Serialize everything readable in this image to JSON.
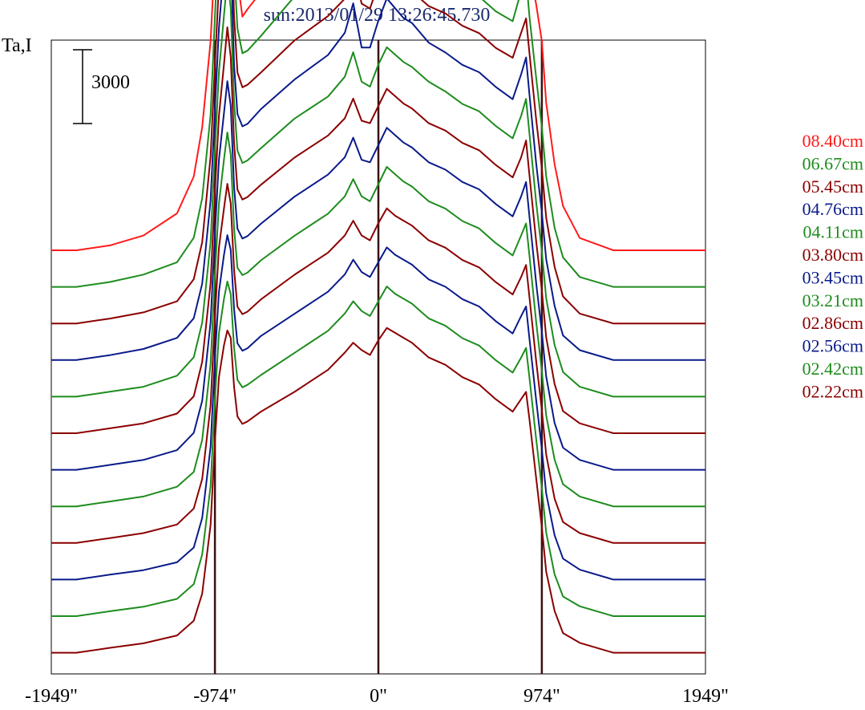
{
  "chart_data": {
    "type": "line",
    "title": "sun:2013/01/29 13:26:45.730",
    "ylabel": "Ta,I",
    "scale_bar_label": "3000",
    "scale_bar_value": 3000,
    "xlim": [
      -1949,
      1949
    ],
    "x_ticks": [
      {
        "value": -1949,
        "label": "-1949\""
      },
      {
        "value": -974,
        "label": "-974\""
      },
      {
        "value": 0,
        "label": "0\""
      },
      {
        "value": 974,
        "label": "974\""
      },
      {
        "value": 1949,
        "label": "1949\""
      }
    ],
    "vertical_markers": [
      -974,
      0,
      974
    ],
    "legend_position": "right",
    "offset_step": 3000,
    "x": [
      -1949,
      -1800,
      -1600,
      -1400,
      -1200,
      -1100,
      -1050,
      -1000,
      -974,
      -950,
      -920,
      -900,
      -880,
      -860,
      -840,
      -810,
      -780,
      -700,
      -500,
      -300,
      -200,
      -150,
      -100,
      -50,
      0,
      50,
      100,
      150,
      200,
      250,
      300,
      400,
      500,
      600,
      700,
      800,
      850,
      880,
      900,
      940,
      974,
      1000,
      1050,
      1100,
      1200,
      1400,
      1600,
      1800,
      1949
    ],
    "series": [
      {
        "name": "08.40cm",
        "color": "#ff1a1a",
        "values": [
          0,
          0,
          200,
          600,
          1500,
          3000,
          5000,
          8500,
          12000,
          15500,
          18500,
          20500,
          19000,
          15000,
          11000,
          9500,
          9800,
          10500,
          12000,
          13500,
          15000,
          16500,
          15000,
          14000,
          15500,
          16500,
          15500,
          15000,
          15000,
          14200,
          13500,
          13000,
          12500,
          12200,
          11500,
          11000,
          12500,
          13000,
          11500,
          10000,
          8500,
          6000,
          3500,
          1800,
          500,
          0,
          0,
          0,
          0
        ]
      },
      {
        "name": "06.67cm",
        "color": "#1e8c1e",
        "values": [
          0,
          0,
          200,
          500,
          1000,
          2000,
          3600,
          7000,
          11000,
          14500,
          17500,
          19500,
          18000,
          13000,
          10500,
          9500,
          9600,
          10200,
          11800,
          12800,
          13800,
          15500,
          13500,
          12800,
          14000,
          15000,
          14600,
          14200,
          14000,
          13500,
          13000,
          12700,
          12200,
          11800,
          11200,
          10800,
          12000,
          12600,
          11000,
          8500,
          6500,
          4500,
          2400,
          1200,
          400,
          0,
          0,
          0,
          0
        ]
      },
      {
        "name": "05.45cm",
        "color": "#8b0000",
        "values": [
          0,
          0,
          200,
          450,
          900,
          1800,
          3300,
          6800,
          10500,
          13800,
          16500,
          18500,
          17000,
          12500,
          10200,
          9600,
          9700,
          10200,
          11500,
          12500,
          13200,
          14500,
          13000,
          12800,
          13800,
          14600,
          14200,
          13800,
          13600,
          13200,
          12900,
          12600,
          12100,
          11800,
          11200,
          10800,
          11800,
          12400,
          11000,
          8300,
          6300,
          4300,
          2300,
          1100,
          400,
          0,
          0,
          0,
          0
        ]
      },
      {
        "name": "04.76cm",
        "color": "#0a1a8a",
        "values": [
          0,
          0,
          200,
          450,
          900,
          1700,
          3100,
          6500,
          10200,
          13500,
          16000,
          18000,
          16500,
          12000,
          10000,
          9500,
          9600,
          10200,
          11400,
          12400,
          13300,
          14500,
          12700,
          12700,
          13800,
          14700,
          14300,
          13900,
          13700,
          13300,
          12900,
          12500,
          12000,
          11700,
          11100,
          10600,
          11600,
          12300,
          10800,
          8000,
          6000,
          4100,
          2200,
          1000,
          400,
          0,
          0,
          0,
          0
        ]
      },
      {
        "name": "04.11cm",
        "color": "#1e8c1e",
        "values": [
          0,
          0,
          200,
          400,
          850,
          1600,
          3000,
          6300,
          10000,
          13200,
          15500,
          17000,
          15800,
          12000,
          10000,
          9500,
          9600,
          10100,
          11300,
          12200,
          13000,
          14000,
          12800,
          12600,
          13500,
          14200,
          13900,
          13600,
          13400,
          13100,
          12800,
          12400,
          11900,
          11600,
          11000,
          10500,
          11400,
          12100,
          10700,
          7900,
          5900,
          4000,
          2100,
          1000,
          400,
          0,
          0,
          0,
          0
        ]
      },
      {
        "name": "03.80cm",
        "color": "#8b0000",
        "values": [
          0,
          0,
          200,
          400,
          800,
          1500,
          2900,
          6100,
          9800,
          12900,
          15000,
          16500,
          15300,
          11800,
          9900,
          9500,
          9600,
          10100,
          11200,
          12100,
          12800,
          13600,
          12700,
          12600,
          13300,
          14000,
          13700,
          13400,
          13200,
          12900,
          12600,
          12300,
          11800,
          11500,
          10900,
          10400,
          11200,
          11900,
          10500,
          7800,
          5800,
          3900,
          2000,
          900,
          400,
          0,
          0,
          0,
          0
        ]
      },
      {
        "name": "03.45cm",
        "color": "#0a1a8a",
        "values": [
          0,
          0,
          200,
          400,
          800,
          1500,
          2800,
          6000,
          9600,
          12600,
          14500,
          15800,
          14800,
          11500,
          9800,
          9400,
          9500,
          10000,
          11100,
          12000,
          12700,
          13500,
          12600,
          12500,
          13200,
          13900,
          13600,
          13300,
          13100,
          12800,
          12500,
          12200,
          11700,
          11400,
          10800,
          10300,
          11100,
          11700,
          10300,
          7600,
          5600,
          3800,
          1900,
          900,
          400,
          0,
          0,
          0,
          0
        ]
      },
      {
        "name": "03.21cm",
        "color": "#1e8c1e",
        "values": [
          0,
          0,
          200,
          400,
          800,
          1400,
          2700,
          5800,
          9400,
          12300,
          14100,
          15200,
          14300,
          11300,
          9700,
          9400,
          9500,
          10000,
          11000,
          11900,
          12600,
          13300,
          12600,
          12400,
          13100,
          13800,
          13500,
          13200,
          13000,
          12700,
          12400,
          12100,
          11600,
          11300,
          10700,
          10200,
          11000,
          11500,
          10200,
          7500,
          5500,
          3700,
          1900,
          900,
          400,
          0,
          0,
          0,
          0
        ]
      },
      {
        "name": "02.86cm",
        "color": "#8b0000",
        "values": [
          0,
          0,
          200,
          400,
          750,
          1400,
          2600,
          5600,
          9200,
          12000,
          13600,
          14600,
          13800,
          11100,
          9600,
          9300,
          9400,
          9900,
          10900,
          11800,
          12500,
          13100,
          12500,
          12300,
          13000,
          13600,
          13300,
          13100,
          12900,
          12600,
          12300,
          12000,
          11500,
          11200,
          10600,
          10100,
          10800,
          11300,
          10000,
          7400,
          5400,
          3600,
          1800,
          850,
          400,
          0,
          0,
          0,
          0
        ]
      },
      {
        "name": "02.56cm",
        "color": "#0a1a8a",
        "values": [
          0,
          0,
          200,
          380,
          700,
          1300,
          2500,
          5400,
          9000,
          11700,
          13200,
          14000,
          13400,
          11000,
          9600,
          9300,
          9400,
          9900,
          10800,
          11700,
          12400,
          13000,
          12500,
          12300,
          12900,
          13500,
          13200,
          13000,
          12800,
          12500,
          12200,
          11900,
          11400,
          11100,
          10500,
          10000,
          10700,
          11100,
          9800,
          7300,
          5300,
          3500,
          1800,
          850,
          400,
          0,
          0,
          0,
          0
        ]
      },
      {
        "name": "02.42cm",
        "color": "#1e8c1e",
        "values": [
          0,
          0,
          200,
          380,
          700,
          1300,
          2500,
          5300,
          8800,
          11500,
          12900,
          13600,
          13100,
          10900,
          9600,
          9300,
          9400,
          9800,
          10700,
          11600,
          12300,
          12800,
          12400,
          12200,
          12800,
          13400,
          13100,
          12900,
          12700,
          12400,
          12100,
          11800,
          11300,
          11000,
          10400,
          9900,
          10500,
          10900,
          9700,
          7200,
          5200,
          3400,
          1700,
          800,
          400,
          0,
          0,
          0,
          0
        ]
      },
      {
        "name": "02.22cm",
        "color": "#8b0000",
        "values": [
          0,
          0,
          200,
          380,
          700,
          1300,
          2400,
          5200,
          8600,
          11200,
          12500,
          13100,
          12800,
          10800,
          9600,
          9300,
          9400,
          9800,
          10600,
          11500,
          12200,
          12600,
          12300,
          12100,
          12700,
          13200,
          13000,
          12800,
          12600,
          12300,
          12000,
          11700,
          11200,
          10900,
          10300,
          9800,
          10300,
          10600,
          9500,
          7100,
          5100,
          3300,
          1700,
          800,
          400,
          0,
          0,
          0,
          0
        ]
      }
    ]
  }
}
